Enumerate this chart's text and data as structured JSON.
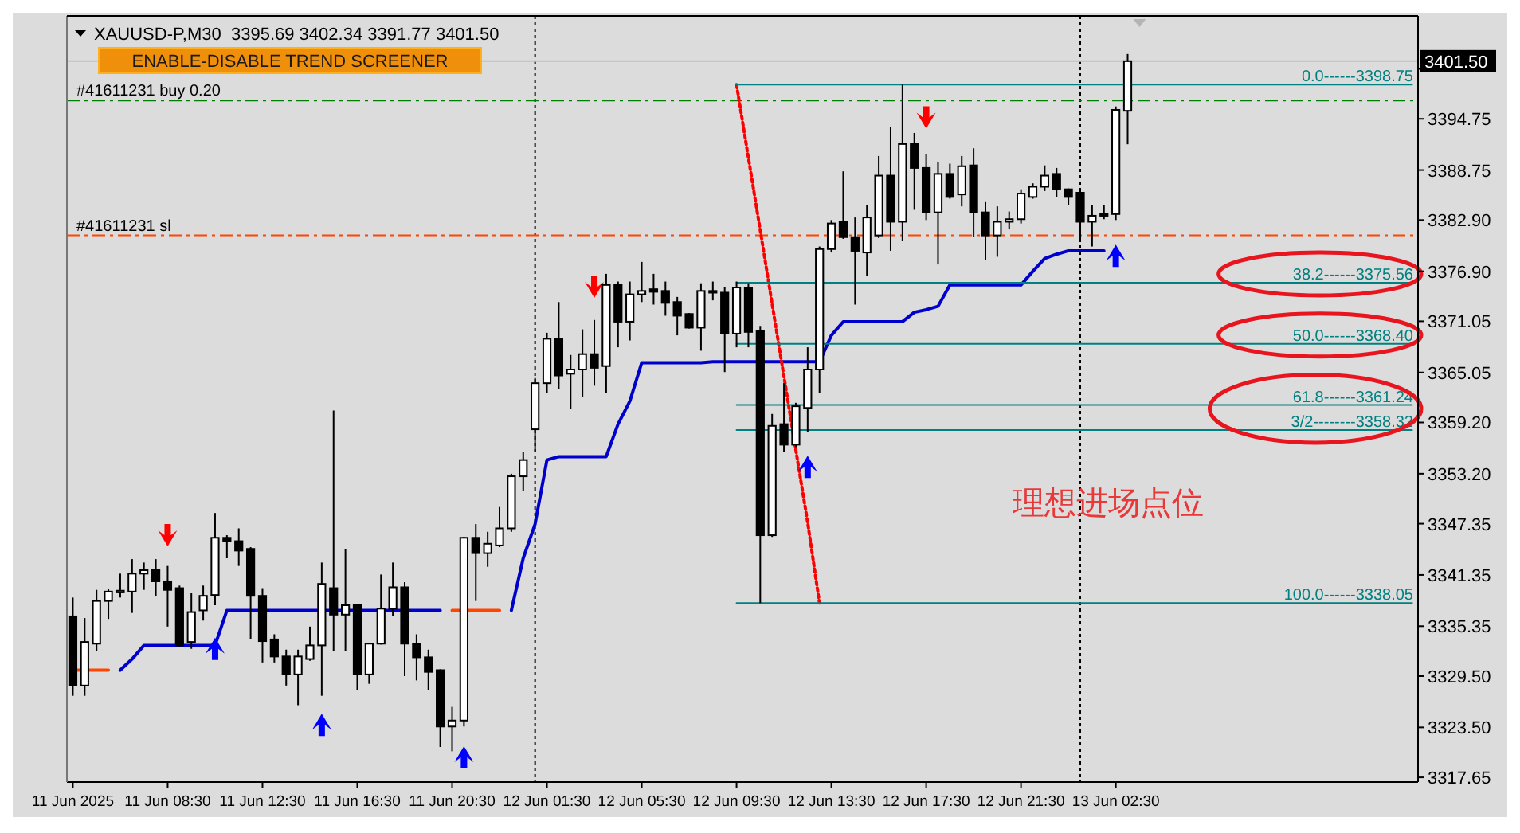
{
  "chart_data": {
    "type": "candlestick",
    "title": "XAUUSD-P,M30  3395.69 3402.34 3391.77 3401.50",
    "annotations": [
      "ENABLE-DISABLE TREND SCREENER",
      "理想进场点位"
    ],
    "ylim": [
      3317.1,
      3406.8
    ],
    "yticks": [
      3317.65,
      {
        "value": 3323.5,
        "label": "3323.50"
      },
      {
        "value": 3329.5,
        "label": "3329.50"
      },
      3335.35,
      3341.35,
      3347.35,
      {
        "value": 3353.2,
        "label": "3353.20"
      },
      {
        "value": 3359.2,
        "label": "3359.20"
      },
      3365.05,
      3371.05,
      {
        "value": 3376.9,
        "label": "3376.90"
      },
      {
        "value": 3382.9,
        "label": "3382.90"
      },
      3388.75,
      3394.75,
      {
        "value": 3400.6,
        "label": null
      }
    ],
    "categories": [
      "11 Jun 2025",
      null,
      null,
      null,
      null,
      null,
      null,
      null,
      "11 Jun 08:30",
      null,
      null,
      null,
      null,
      null,
      null,
      null,
      "11 Jun 12:30",
      null,
      null,
      null,
      null,
      null,
      null,
      null,
      "11 Jun 16:30",
      null,
      null,
      null,
      null,
      null,
      null,
      null,
      "11 Jun 20:30",
      null,
      null,
      null,
      null,
      null,
      null,
      null,
      "12 Jun 01:30",
      null,
      null,
      null,
      null,
      null,
      null,
      null,
      "12 Jun 05:30",
      null,
      null,
      null,
      null,
      null,
      null,
      null,
      "12 Jun 09:30",
      null,
      null,
      null,
      null,
      null,
      null,
      null,
      "12 Jun 13:30",
      null,
      null,
      null,
      null,
      null,
      null,
      null,
      "12 Jun 17:30",
      null,
      null,
      null,
      null,
      null,
      null,
      null,
      "12 Jun 21:30",
      null,
      null,
      null,
      null,
      null,
      null,
      null,
      "13 Jun 02:30",
      null,
      null,
      null,
      null,
      null,
      null,
      null,
      null,
      null,
      null,
      null,
      null,
      null,
      null,
      null,
      null,
      null,
      null,
      null,
      null,
      null,
      null,
      null,
      null,
      null
    ],
    "ohlc": [
      [
        3336.5,
        3338.7,
        3327.2,
        3328.4
      ],
      [
        3328.4,
        3336.3,
        3327.2,
        3333.5
      ],
      [
        3333.3,
        3339.6,
        3332.4,
        3338.3
      ],
      [
        3338.3,
        3339.7,
        3336.2,
        3339.4
      ],
      [
        3339.3,
        3341.5,
        3338.7,
        3339.5
      ],
      [
        3339.4,
        3343.2,
        3336.9,
        3341.5
      ],
      [
        3341.5,
        3342.8,
        3339.6,
        3341.9
      ],
      [
        3341.9,
        3343.2,
        3338.9,
        3340.6
      ],
      [
        3340.6,
        3342.4,
        3335.3,
        3339.6
      ],
      [
        3339.8,
        3340.1,
        3332.9,
        3333.1
      ],
      [
        3333.5,
        3339.2,
        3332.7,
        3337.0
      ],
      [
        3337.2,
        3340.1,
        3336.0,
        3338.9
      ],
      [
        3339.0,
        3348.6,
        3337.8,
        3345.7
      ],
      [
        3345.7,
        3346.0,
        3343.3,
        3345.3
      ],
      [
        3345.3,
        3346.8,
        3342.4,
        3344.2
      ],
      [
        3344.4,
        3344.6,
        3333.8,
        3338.9
      ],
      [
        3338.9,
        3339.8,
        3331.1,
        3333.6
      ],
      [
        3333.8,
        3334.4,
        3331.1,
        3331.8
      ],
      [
        3331.8,
        3332.6,
        3328.4,
        3329.7
      ],
      [
        3329.7,
        3332.6,
        3326.1,
        3331.8
      ],
      [
        3331.5,
        3335.3,
        3331.3,
        3333.1
      ],
      [
        3333.1,
        3342.8,
        3327.2,
        3340.3
      ],
      [
        3339.8,
        3360.6,
        3332.4,
        3336.7
      ],
      [
        3336.7,
        3344.4,
        3332.4,
        3337.8
      ],
      [
        3337.8,
        3337.9,
        3327.9,
        3329.7
      ],
      [
        3329.7,
        3333.4,
        3328.6,
        3333.3
      ],
      [
        3333.3,
        3341.4,
        3333.2,
        3337.4
      ],
      [
        3337.4,
        3342.8,
        3336.5,
        3339.9
      ],
      [
        3339.9,
        3340.5,
        3329.5,
        3333.3
      ],
      [
        3333.3,
        3334.4,
        3329.0,
        3331.7
      ],
      [
        3331.7,
        3332.6,
        3327.9,
        3330.0
      ],
      [
        3330.2,
        3330.3,
        3321.2,
        3323.6
      ],
      [
        3323.6,
        3325.9,
        3320.7,
        3324.3
      ],
      [
        3324.3,
        3345.8,
        3323.6,
        3345.7
      ],
      [
        3345.7,
        3347.3,
        3338.3,
        3343.9
      ],
      [
        3343.9,
        3346.4,
        3342.3,
        3345.0
      ],
      [
        3344.8,
        3349.3,
        3344.6,
        3346.8
      ],
      [
        3346.8,
        3353.2,
        3346.4,
        3352.9
      ],
      [
        3352.9,
        3355.7,
        3351.2,
        3354.8
      ],
      [
        3358.4,
        3364.4,
        3355.7,
        3363.8
      ],
      [
        3363.8,
        3369.7,
        3362.6,
        3369.0
      ],
      [
        3369.0,
        3373.3,
        3363.1,
        3364.7
      ],
      [
        3364.9,
        3367.1,
        3360.8,
        3365.4
      ],
      [
        3365.4,
        3370.1,
        3362.2,
        3367.2
      ],
      [
        3367.2,
        3371.2,
        3363.5,
        3365.6
      ],
      [
        3365.8,
        3376.6,
        3362.6,
        3375.3
      ],
      [
        3375.3,
        3375.7,
        3368.0,
        3371.0
      ],
      [
        3371.0,
        3375.7,
        3368.8,
        3374.2
      ],
      [
        3374.2,
        3378.0,
        3373.3,
        3374.6
      ],
      [
        3374.8,
        3376.6,
        3373.0,
        3374.5
      ],
      [
        3374.6,
        3375.7,
        3371.7,
        3373.2
      ],
      [
        3373.3,
        3373.9,
        3369.4,
        3371.7
      ],
      [
        3371.9,
        3372.0,
        3370.2,
        3370.3
      ],
      [
        3370.3,
        3375.5,
        3367.6,
        3374.6
      ],
      [
        3374.6,
        3375.7,
        3373.5,
        3374.4
      ],
      [
        3374.4,
        3375.1,
        3365.1,
        3369.6
      ],
      [
        3369.6,
        3375.7,
        3368.0,
        3375.0
      ],
      [
        3375.0,
        3375.5,
        3368.0,
        3369.8
      ],
      [
        3369.9,
        3370.5,
        3338.05,
        3346.0
      ],
      [
        3346.0,
        3360.2,
        3345.8,
        3358.8
      ],
      [
        3359.0,
        3363.8,
        3355.7,
        3356.6
      ],
      [
        3356.6,
        3361.5,
        3356.3,
        3361.1
      ],
      [
        3360.9,
        3368.0,
        3358.1,
        3365.4
      ],
      [
        3365.4,
        3379.8,
        3362.6,
        3379.5
      ],
      [
        3379.5,
        3382.9,
        3379.1,
        3382.5
      ],
      [
        3382.7,
        3388.6,
        3380.7,
        3380.9
      ],
      [
        3380.9,
        3383.2,
        3373.0,
        3379.3
      ],
      [
        3379.1,
        3384.7,
        3376.4,
        3383.2
      ],
      [
        3381.1,
        3390.4,
        3380.8,
        3388.1
      ],
      [
        3388.1,
        3393.8,
        3379.3,
        3382.7
      ],
      [
        3382.7,
        3398.75,
        3380.5,
        3391.8
      ],
      [
        3391.8,
        3393.1,
        3384.1,
        3389.0
      ],
      [
        3389.0,
        3390.6,
        3382.9,
        3383.8
      ],
      [
        3383.8,
        3389.7,
        3377.7,
        3388.3
      ],
      [
        3388.3,
        3389.5,
        3385.4,
        3385.6
      ],
      [
        3385.9,
        3390.4,
        3384.5,
        3389.2
      ],
      [
        3389.3,
        3391.3,
        3380.9,
        3383.8
      ],
      [
        3383.8,
        3385.0,
        3378.2,
        3381.1
      ],
      [
        3381.1,
        3384.5,
        3378.6,
        3382.7
      ],
      [
        3382.7,
        3383.9,
        3381.8,
        3383.0
      ],
      [
        3383.0,
        3386.5,
        3382.5,
        3386.0
      ],
      [
        3385.6,
        3387.2,
        3385.4,
        3386.8
      ],
      [
        3386.8,
        3389.3,
        3386.3,
        3388.1
      ],
      [
        3388.3,
        3389.0,
        3385.6,
        3386.5
      ],
      [
        3386.5,
        3386.6,
        3384.7,
        3385.6
      ],
      [
        3386.1,
        3386.5,
        3380.5,
        3382.7
      ],
      [
        3382.7,
        3384.7,
        3379.8,
        3383.4
      ],
      [
        3383.6,
        3384.7,
        3383.0,
        3383.4
      ],
      [
        3383.6,
        3396.2,
        3382.9,
        3395.8
      ],
      [
        3395.69,
        3402.34,
        3391.77,
        3401.5
      ],
      null,
      null,
      null,
      null,
      null,
      null,
      null,
      null,
      null,
      null,
      null,
      null,
      null,
      null,
      null,
      null,
      null,
      null,
      null,
      null,
      null,
      null,
      null,
      null
    ],
    "series": [
      {
        "type": "line",
        "color": "#0000cd",
        "values": [
          null,
          null,
          null,
          null,
          3330.2,
          3331.5,
          3333.1,
          3333.1,
          3333.1,
          3333.1,
          3333.1,
          3333.1,
          3333.1,
          3337.2,
          3337.2,
          3337.2,
          3337.2,
          3337.2,
          3337.2,
          3337.2,
          3337.2,
          3337.2,
          3337.2,
          3337.2,
          3337.2,
          3337.2,
          3337.2,
          3337.2,
          3337.2,
          3337.2,
          3337.2,
          3337.2,
          null,
          null,
          null,
          null,
          null,
          3337.2,
          3343.3,
          3347.3,
          3354.8,
          3355.2,
          3355.2,
          3355.2,
          3355.2,
          3355.2,
          3359.0,
          3361.7,
          3366.2,
          3366.2,
          3366.2,
          3366.2,
          3366.2,
          3366.2,
          3366.3,
          3366.3,
          3366.3,
          3366.3,
          3366.3,
          3366.3,
          3366.3,
          3366.3,
          3366.3,
          3366.3,
          3369.4,
          3371.0,
          3371.0,
          3371.0,
          3371.0,
          3371.0,
          3371.0,
          3372.1,
          3372.4,
          3372.8,
          3375.3,
          3375.3,
          3375.3,
          3375.3,
          3375.3,
          3375.3,
          3375.3,
          3376.9,
          3378.4,
          3378.9,
          3379.3,
          3379.3,
          3379.3,
          3379.3,
          null,
          null,
          null,
          null,
          null,
          null,
          null,
          null,
          null,
          null,
          null,
          null,
          null,
          null,
          null,
          null,
          null,
          null,
          null,
          null,
          null,
          null,
          null,
          null,
          null,
          null
        ]
      },
      {
        "type": "line",
        "color": "#ff4500",
        "values": [
          3330.2,
          3330.2,
          3330.2,
          3330.2,
          null,
          null,
          null,
          null,
          null,
          null,
          null,
          null,
          null,
          null,
          null,
          null,
          null,
          null,
          null,
          null,
          null,
          null,
          null,
          null,
          null,
          null,
          null,
          null,
          null,
          null,
          null,
          null,
          3337.2,
          3337.2,
          3337.2,
          3337.2,
          3337.2,
          null,
          null,
          null,
          null,
          null,
          null,
          null,
          null,
          null,
          null,
          null,
          null,
          null,
          null,
          null,
          null,
          null,
          null,
          null,
          null,
          null,
          null,
          null,
          null,
          null,
          null,
          null,
          null,
          null,
          null,
          null,
          null,
          null,
          null,
          null,
          null,
          null,
          null,
          null,
          null,
          null,
          null,
          null,
          null,
          null,
          null,
          null,
          null,
          null,
          null,
          null,
          null,
          null,
          null,
          null,
          null,
          null,
          null,
          null,
          null,
          null,
          null,
          null,
          null,
          null,
          null,
          null,
          null,
          null,
          null,
          null,
          null,
          null,
          null,
          null,
          null,
          null
        ]
      },
      {
        "type": "line",
        "color": "#ff0000",
        "line_style": "dotted",
        "values": [
          null,
          null,
          null,
          null,
          null,
          null,
          null,
          null,
          null,
          null,
          null,
          null,
          null,
          null,
          null,
          null,
          null,
          null,
          null,
          null,
          null,
          null,
          null,
          null,
          null,
          null,
          null,
          null,
          null,
          null,
          null,
          null,
          null,
          null,
          null,
          null,
          null,
          null,
          null,
          null,
          null,
          null,
          null,
          null,
          null,
          null,
          null,
          null,
          null,
          null,
          null,
          null,
          null,
          null,
          null,
          null,
          3398.75,
          3390.2,
          3381.7,
          3373.1,
          3364.6,
          3356.0,
          3347.5,
          3338.05,
          null,
          null,
          null,
          null,
          null,
          null,
          null,
          null,
          null,
          null,
          null,
          null,
          null,
          null,
          null,
          null,
          null,
          null,
          null,
          null,
          null,
          null,
          null,
          null,
          null,
          null,
          null,
          null,
          null,
          null,
          null,
          null,
          null,
          null,
          null,
          null,
          null,
          null,
          null,
          null,
          null,
          null,
          null,
          null,
          null,
          null,
          null,
          null,
          null,
          null
        ]
      },
      {
        "type": "line",
        "name": "0.0------3398.75",
        "color": "#008080",
        "values": [
          null,
          null,
          null,
          null,
          null,
          null,
          null,
          null,
          null,
          null,
          null,
          null,
          null,
          null,
          null,
          null,
          null,
          null,
          null,
          null,
          null,
          null,
          null,
          null,
          null,
          null,
          null,
          null,
          null,
          null,
          null,
          null,
          null,
          null,
          null,
          null,
          null,
          null,
          null,
          null,
          null,
          null,
          null,
          null,
          null,
          null,
          null,
          null,
          null,
          null,
          null,
          null,
          null,
          null,
          null,
          null,
          3398.75,
          3398.75,
          3398.75,
          3398.75,
          3398.75,
          3398.75,
          3398.75,
          3398.75,
          3398.75,
          3398.75,
          3398.75,
          3398.75,
          3398.75,
          3398.75,
          3398.75,
          3398.75,
          3398.75,
          3398.75,
          3398.75,
          3398.75,
          3398.75,
          3398.75,
          3398.75,
          3398.75,
          3398.75,
          3398.75,
          3398.75,
          3398.75,
          3398.75,
          3398.75,
          3398.75,
          3398.75,
          3398.75,
          3398.75,
          3398.75,
          3398.75,
          3398.75,
          3398.75,
          3398.75,
          3398.75,
          3398.75,
          3398.75,
          3398.75,
          3398.75,
          3398.75,
          3398.75,
          3398.75,
          3398.75,
          3398.75,
          3398.75,
          3398.75,
          3398.75,
          3398.75,
          3398.75,
          3398.75,
          3398.75,
          3398.75,
          3398.75
        ]
      },
      {
        "type": "line",
        "name": "38.2------3375.56",
        "color": "#008080",
        "values": [
          null,
          null,
          null,
          null,
          null,
          null,
          null,
          null,
          null,
          null,
          null,
          null,
          null,
          null,
          null,
          null,
          null,
          null,
          null,
          null,
          null,
          null,
          null,
          null,
          null,
          null,
          null,
          null,
          null,
          null,
          null,
          null,
          null,
          null,
          null,
          null,
          null,
          null,
          null,
          null,
          null,
          null,
          null,
          null,
          null,
          null,
          null,
          null,
          null,
          null,
          null,
          null,
          null,
          null,
          null,
          null,
          3375.56,
          3375.56,
          3375.56,
          3375.56,
          3375.56,
          3375.56,
          3375.56,
          3375.56,
          3375.56,
          3375.56,
          3375.56,
          3375.56,
          3375.56,
          3375.56,
          3375.56,
          3375.56,
          3375.56,
          3375.56,
          3375.56,
          3375.56,
          3375.56,
          3375.56,
          3375.56,
          3375.56,
          3375.56,
          3375.56,
          3375.56,
          3375.56,
          3375.56,
          3375.56,
          3375.56,
          3375.56,
          3375.56,
          3375.56,
          3375.56,
          3375.56,
          3375.56,
          3375.56,
          3375.56,
          3375.56,
          3375.56,
          3375.56,
          3375.56,
          3375.56,
          3375.56,
          3375.56,
          3375.56,
          3375.56,
          3375.56,
          3375.56,
          3375.56,
          3375.56,
          3375.56,
          3375.56,
          3375.56,
          3375.56,
          3375.56,
          3375.56
        ]
      },
      {
        "type": "line",
        "name": "50.0------3368.40",
        "color": "#008080",
        "values": [
          null,
          null,
          null,
          null,
          null,
          null,
          null,
          null,
          null,
          null,
          null,
          null,
          null,
          null,
          null,
          null,
          null,
          null,
          null,
          null,
          null,
          null,
          null,
          null,
          null,
          null,
          null,
          null,
          null,
          null,
          null,
          null,
          null,
          null,
          null,
          null,
          null,
          null,
          null,
          null,
          null,
          null,
          null,
          null,
          null,
          null,
          null,
          null,
          null,
          null,
          null,
          null,
          null,
          null,
          null,
          null,
          3368.4,
          3368.4,
          3368.4,
          3368.4,
          3368.4,
          3368.4,
          3368.4,
          3368.4,
          3368.4,
          3368.4,
          3368.4,
          3368.4,
          3368.4,
          3368.4,
          3368.4,
          3368.4,
          3368.4,
          3368.4,
          3368.4,
          3368.4,
          3368.4,
          3368.4,
          3368.4,
          3368.4,
          3368.4,
          3368.4,
          3368.4,
          3368.4,
          3368.4,
          3368.4,
          3368.4,
          3368.4,
          3368.4,
          3368.4,
          3368.4,
          3368.4,
          3368.4,
          3368.4,
          3368.4,
          3368.4,
          3368.4,
          3368.4,
          3368.4,
          3368.4,
          3368.4,
          3368.4,
          3368.4,
          3368.4,
          3368.4,
          3368.4,
          3368.4,
          3368.4,
          3368.4,
          3368.4,
          3368.4,
          3368.4,
          3368.4,
          3368.4
        ]
      },
      {
        "type": "line",
        "name": "61.8------3361.24",
        "color": "#008080",
        "values": [
          null,
          null,
          null,
          null,
          null,
          null,
          null,
          null,
          null,
          null,
          null,
          null,
          null,
          null,
          null,
          null,
          null,
          null,
          null,
          null,
          null,
          null,
          null,
          null,
          null,
          null,
          null,
          null,
          null,
          null,
          null,
          null,
          null,
          null,
          null,
          null,
          null,
          null,
          null,
          null,
          null,
          null,
          null,
          null,
          null,
          null,
          null,
          null,
          null,
          null,
          null,
          null,
          null,
          null,
          null,
          null,
          3361.24,
          3361.24,
          3361.24,
          3361.24,
          3361.24,
          3361.24,
          3361.24,
          3361.24,
          3361.24,
          3361.24,
          3361.24,
          3361.24,
          3361.24,
          3361.24,
          3361.24,
          3361.24,
          3361.24,
          3361.24,
          3361.24,
          3361.24,
          3361.24,
          3361.24,
          3361.24,
          3361.24,
          3361.24,
          3361.24,
          3361.24,
          3361.24,
          3361.24,
          3361.24,
          3361.24,
          3361.24,
          3361.24,
          3361.24,
          3361.24,
          3361.24,
          3361.24,
          3361.24,
          3361.24,
          3361.24,
          3361.24,
          3361.24,
          3361.24,
          3361.24,
          3361.24,
          3361.24,
          3361.24,
          3361.24,
          3361.24,
          3361.24,
          3361.24,
          3361.24,
          3361.24,
          3361.24,
          3361.24,
          3361.24,
          3361.24,
          3361.24
        ]
      },
      {
        "type": "line",
        "name": "3/2--------3358.32",
        "color": "#008080",
        "values": [
          null,
          null,
          null,
          null,
          null,
          null,
          null,
          null,
          null,
          null,
          null,
          null,
          null,
          null,
          null,
          null,
          null,
          null,
          null,
          null,
          null,
          null,
          null,
          null,
          null,
          null,
          null,
          null,
          null,
          null,
          null,
          null,
          null,
          null,
          null,
          null,
          null,
          null,
          null,
          null,
          null,
          null,
          null,
          null,
          null,
          null,
          null,
          null,
          null,
          null,
          null,
          null,
          null,
          null,
          null,
          null,
          3358.32,
          3358.32,
          3358.32,
          3358.32,
          3358.32,
          3358.32,
          3358.32,
          3358.32,
          3358.32,
          3358.32,
          3358.32,
          3358.32,
          3358.32,
          3358.32,
          3358.32,
          3358.32,
          3358.32,
          3358.32,
          3358.32,
          3358.32,
          3358.32,
          3358.32,
          3358.32,
          3358.32,
          3358.32,
          3358.32,
          3358.32,
          3358.32,
          3358.32,
          3358.32,
          3358.32,
          3358.32,
          3358.32,
          3358.32,
          3358.32,
          3358.32,
          3358.32,
          3358.32,
          3358.32,
          3358.32,
          3358.32,
          3358.32,
          3358.32,
          3358.32,
          3358.32,
          3358.32,
          3358.32,
          3358.32,
          3358.32,
          3358.32,
          3358.32,
          3358.32,
          3358.32,
          3358.32,
          3358.32,
          3358.32,
          3358.32,
          3358.32
        ]
      },
      {
        "type": "line",
        "name": "100.0------3338.05",
        "color": "#008080",
        "values": [
          null,
          null,
          null,
          null,
          null,
          null,
          null,
          null,
          null,
          null,
          null,
          null,
          null,
          null,
          null,
          null,
          null,
          null,
          null,
          null,
          null,
          null,
          null,
          null,
          null,
          null,
          null,
          null,
          null,
          null,
          null,
          null,
          null,
          null,
          null,
          null,
          null,
          null,
          null,
          null,
          null,
          null,
          null,
          null,
          null,
          null,
          null,
          null,
          null,
          null,
          null,
          null,
          null,
          null,
          null,
          null,
          3338.05,
          3338.05,
          3338.05,
          3338.05,
          3338.05,
          3338.05,
          3338.05,
          3338.05,
          3338.05,
          3338.05,
          3338.05,
          3338.05,
          3338.05,
          3338.05,
          3338.05,
          3338.05,
          3338.05,
          3338.05,
          3338.05,
          3338.05,
          3338.05,
          3338.05,
          3338.05,
          3338.05,
          3338.05,
          3338.05,
          3338.05,
          3338.05,
          3338.05,
          3338.05,
          3338.05,
          3338.05,
          3338.05,
          3338.05,
          3338.05,
          3338.05,
          3338.05,
          3338.05,
          3338.05,
          3338.05,
          3338.05,
          3338.05,
          3338.05,
          3338.05,
          3338.05,
          3338.05,
          3338.05,
          3338.05,
          3338.05,
          3338.05,
          3338.05,
          3338.05,
          3338.05,
          3338.05,
          3338.05,
          3338.05,
          3338.05,
          3338.05
        ]
      },
      {
        "type": "scatter",
        "color": "#ff0000",
        "marker": "triangle",
        "values": [
          null,
          null,
          null,
          null,
          null,
          null,
          null,
          null,
          3346.0,
          null,
          null,
          null,
          null,
          null,
          null,
          null,
          null,
          null,
          null,
          null,
          null,
          null,
          null,
          null,
          null,
          null,
          null,
          null,
          null,
          null,
          null,
          null,
          null,
          null,
          null,
          null,
          null,
          null,
          null,
          null,
          null,
          null,
          null,
          null,
          3375.1,
          null,
          null,
          null,
          null,
          null,
          null,
          null,
          null,
          null,
          null,
          null,
          null,
          null,
          null,
          null,
          null,
          null,
          null,
          null,
          null,
          null,
          null,
          null,
          null,
          null,
          null,
          null,
          3394.9,
          null,
          null,
          null,
          null,
          null,
          null,
          null,
          null,
          null,
          null,
          null,
          null,
          null,
          null,
          null,
          null,
          null,
          null,
          null,
          null,
          null,
          null,
          null,
          null,
          null,
          null,
          null,
          null,
          null,
          null,
          null,
          null,
          null,
          null,
          null,
          null,
          null,
          null,
          null,
          null,
          null
        ]
      },
      {
        "type": "scatter",
        "color": "#0000ff",
        "marker": "triangle",
        "values": [
          null,
          null,
          null,
          null,
          null,
          null,
          null,
          null,
          null,
          null,
          null,
          null,
          3332.7,
          null,
          null,
          null,
          null,
          null,
          null,
          null,
          null,
          3323.8,
          null,
          null,
          null,
          null,
          null,
          null,
          null,
          null,
          null,
          null,
          null,
          3320.0,
          null,
          null,
          null,
          null,
          null,
          null,
          null,
          null,
          null,
          null,
          null,
          null,
          null,
          null,
          null,
          null,
          null,
          null,
          null,
          null,
          null,
          null,
          null,
          null,
          null,
          null,
          null,
          null,
          3354.0,
          null,
          null,
          null,
          null,
          null,
          null,
          null,
          null,
          null,
          null,
          null,
          null,
          null,
          null,
          null,
          null,
          null,
          null,
          null,
          null,
          null,
          null,
          null,
          null,
          null,
          3378.7,
          null,
          null,
          null,
          null,
          null,
          null,
          null,
          null,
          null,
          null,
          null,
          null,
          null,
          null,
          null,
          null,
          null,
          null,
          null,
          null,
          null,
          null,
          null,
          null,
          null
        ]
      }
    ],
    "ref_lines": [
      {
        "axis": "y",
        "value": 3401.5,
        "label": "3401.50",
        "color": "#c0c0c0",
        "line_style": "solid"
      },
      {
        "axis": "y",
        "value": 3396.9,
        "label": "#41611231 buy 0.20",
        "color": "#008000",
        "line_style": "dashed"
      },
      {
        "axis": "y",
        "value": 3381.1,
        "label": "#41611231 sl",
        "color": "#ff4500",
        "line_style": "dashed"
      }
    ]
  }
}
